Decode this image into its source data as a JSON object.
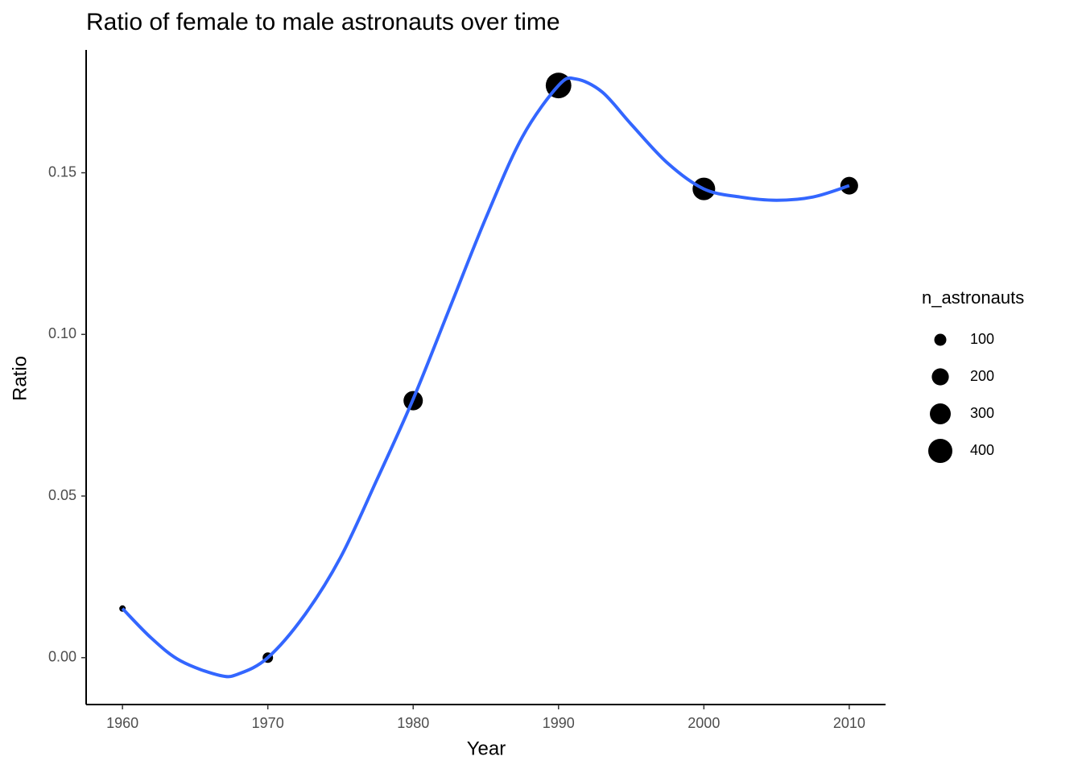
{
  "chart_data": {
    "type": "scatter",
    "title": "Ratio of female to male astronauts over time",
    "x_label": "Year",
    "y_label": "Ratio",
    "x": [
      1960,
      1970,
      1980,
      1990,
      2000,
      2010
    ],
    "values": [
      0.0152,
      0.0,
      0.0795,
      0.177,
      0.145,
      0.146
    ],
    "sizes": [
      28,
      75,
      256,
      450,
      350,
      215
    ],
    "color": "#000000",
    "smooth": {
      "color": "#3366ff",
      "x": [
        1960,
        1962,
        1964,
        1966.7,
        1968,
        1970,
        1972.5,
        1975,
        1977.5,
        1980,
        1982.5,
        1985,
        1987.5,
        1990,
        1991.2,
        1993,
        1995,
        1997.5,
        2000,
        2002.5,
        2005,
        2007.5,
        2010
      ],
      "values": [
        0.0152,
        0.006,
        -0.001,
        -0.0055,
        -0.005,
        0.0,
        0.013,
        0.031,
        0.055,
        0.08,
        0.108,
        0.136,
        0.161,
        0.177,
        0.179,
        0.175,
        0.165,
        0.153,
        0.145,
        0.1425,
        0.1415,
        0.1425,
        0.146
      ]
    },
    "size_legend": {
      "title": "n_astronauts",
      "values": [
        100,
        200,
        300,
        400
      ]
    },
    "xlim": [
      1957.5,
      2012.5
    ],
    "xticks": [
      1960,
      1970,
      1980,
      1990,
      2000,
      2010
    ],
    "ylim": [
      -0.0145,
      0.188
    ],
    "yticks": [
      {
        "value": 0,
        "label": "0.00"
      },
      {
        "value": 0.05,
        "label": "0.05"
      },
      {
        "value": 0.1,
        "label": "0.10"
      },
      {
        "value": 0.15,
        "label": "0.15"
      }
    ],
    "grid": false
  }
}
